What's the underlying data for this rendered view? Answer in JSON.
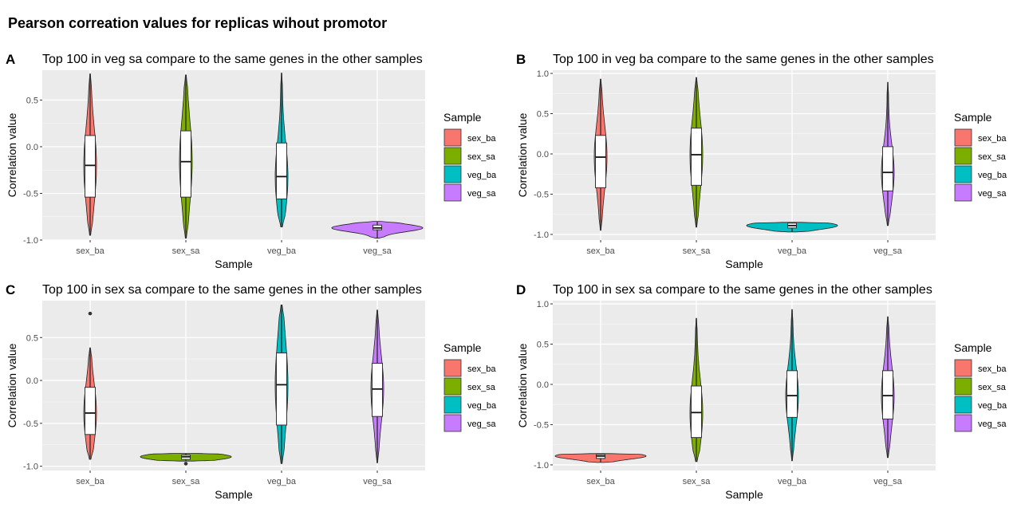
{
  "page_title": "Pearson correation values for replicas wihout promotor",
  "legend_title": "Sample",
  "chart_data": [
    {
      "panel": "A",
      "type": "violin",
      "title": "Top 100 in veg sa compare to the same genes in the other samples",
      "xlabel": "Sample",
      "ylabel": "Correlation value",
      "categories": [
        "sex_ba",
        "sex_sa",
        "veg_ba",
        "veg_sa"
      ],
      "colors": [
        "#F8766D",
        "#7CAE00",
        "#00BFC4",
        "#C77CFF"
      ],
      "ylim": [
        -1.0,
        0.82
      ],
      "yticks": [
        -1.0,
        -0.5,
        0.0,
        0.5
      ],
      "ytick_labels": [
        "-1.0",
        "-0.5",
        "0.0",
        "0.5"
      ],
      "grid": true,
      "legend_position": "right",
      "series": [
        {
          "name": "sex_ba",
          "min": -0.95,
          "q1": -0.54,
          "median": -0.2,
          "q3": 0.12,
          "max": 0.78,
          "outliers": []
        },
        {
          "name": "sex_sa",
          "min": -0.98,
          "q1": -0.54,
          "median": -0.16,
          "q3": 0.17,
          "max": 0.77,
          "outliers": []
        },
        {
          "name": "veg_ba",
          "min": -0.86,
          "q1": -0.56,
          "median": -0.32,
          "q3": 0.04,
          "max": 0.79,
          "outliers": []
        },
        {
          "name": "veg_sa",
          "min": -0.98,
          "q1": -0.89,
          "median": -0.87,
          "q3": -0.84,
          "max": -0.8,
          "outliers": []
        }
      ]
    },
    {
      "panel": "B",
      "type": "violin",
      "title": "Top 100 in veg ba compare to the same genes in the other samples",
      "xlabel": "Sample",
      "ylabel": "Correlation value",
      "categories": [
        "sex_ba",
        "sex_sa",
        "veg_ba",
        "veg_sa"
      ],
      "colors": [
        "#F8766D",
        "#7CAE00",
        "#00BFC4",
        "#C77CFF"
      ],
      "ylim": [
        -1.07,
        1.04
      ],
      "yticks": [
        -1.0,
        -0.5,
        0.0,
        0.5,
        1.0
      ],
      "ytick_labels": [
        "-1.0",
        "-0.5",
        "0.0",
        "0.5",
        "1.0"
      ],
      "grid": true,
      "legend_position": "right",
      "series": [
        {
          "name": "sex_ba",
          "min": -0.95,
          "q1": -0.42,
          "median": -0.04,
          "q3": 0.23,
          "max": 0.93,
          "outliers": []
        },
        {
          "name": "sex_sa",
          "min": -0.91,
          "q1": -0.39,
          "median": -0.01,
          "q3": 0.32,
          "max": 0.95,
          "outliers": []
        },
        {
          "name": "veg_ba",
          "min": -0.97,
          "q1": -0.92,
          "median": -0.89,
          "q3": -0.86,
          "max": -0.85,
          "outliers": []
        },
        {
          "name": "veg_sa",
          "min": -0.89,
          "q1": -0.46,
          "median": -0.23,
          "q3": 0.09,
          "max": 0.89,
          "outliers": []
        }
      ]
    },
    {
      "panel": "C",
      "type": "violin",
      "title": "Top 100 in sex sa compare to the same genes in the other samples",
      "xlabel": "Sample",
      "ylabel": "Correlation value",
      "categories": [
        "sex_ba",
        "sex_sa",
        "veg_ba",
        "veg_sa"
      ],
      "colors": [
        "#F8766D",
        "#7CAE00",
        "#00BFC4",
        "#C77CFF"
      ],
      "ylim": [
        -1.05,
        0.93
      ],
      "yticks": [
        -1.0,
        -0.5,
        0.0,
        0.5
      ],
      "ytick_labels": [
        "-1.0",
        "-0.5",
        "0.0",
        "0.5"
      ],
      "grid": true,
      "legend_position": "right",
      "series": [
        {
          "name": "sex_ba",
          "min": -0.92,
          "q1": -0.63,
          "median": -0.38,
          "q3": -0.08,
          "max": 0.38,
          "outliers": [
            0.78
          ]
        },
        {
          "name": "sex_sa",
          "min": -0.94,
          "q1": -0.92,
          "median": -0.89,
          "q3": -0.87,
          "max": -0.85,
          "outliers": [
            -0.97
          ]
        },
        {
          "name": "veg_ba",
          "min": -0.97,
          "q1": -0.52,
          "median": -0.05,
          "q3": 0.32,
          "max": 0.88,
          "outliers": []
        },
        {
          "name": "veg_sa",
          "min": -0.96,
          "q1": -0.42,
          "median": -0.1,
          "q3": 0.2,
          "max": 0.82,
          "outliers": []
        }
      ]
    },
    {
      "panel": "D",
      "type": "violin",
      "title": "Top 100 in sex sa compare to the same genes in the other samples",
      "xlabel": "Sample",
      "ylabel": "Correlation value",
      "categories": [
        "sex_ba",
        "sex_sa",
        "veg_ba",
        "veg_sa"
      ],
      "colors": [
        "#F8766D",
        "#7CAE00",
        "#00BFC4",
        "#C77CFF"
      ],
      "ylim": [
        -1.07,
        1.04
      ],
      "yticks": [
        -1.0,
        -0.5,
        0.0,
        0.5,
        1.0
      ],
      "ytick_labels": [
        "-1.0",
        "-0.5",
        "0.0",
        "0.5",
        "1.0"
      ],
      "grid": true,
      "legend_position": "right",
      "series": [
        {
          "name": "sex_ba",
          "min": -0.97,
          "q1": -0.92,
          "median": -0.89,
          "q3": -0.87,
          "max": -0.86,
          "outliers": []
        },
        {
          "name": "sex_sa",
          "min": -0.96,
          "q1": -0.66,
          "median": -0.35,
          "q3": -0.02,
          "max": 0.82,
          "outliers": []
        },
        {
          "name": "veg_ba",
          "min": -0.95,
          "q1": -0.41,
          "median": -0.14,
          "q3": 0.17,
          "max": 0.93,
          "outliers": []
        },
        {
          "name": "veg_sa",
          "min": -0.91,
          "q1": -0.43,
          "median": -0.14,
          "q3": 0.17,
          "max": 0.84,
          "outliers": []
        }
      ]
    }
  ]
}
